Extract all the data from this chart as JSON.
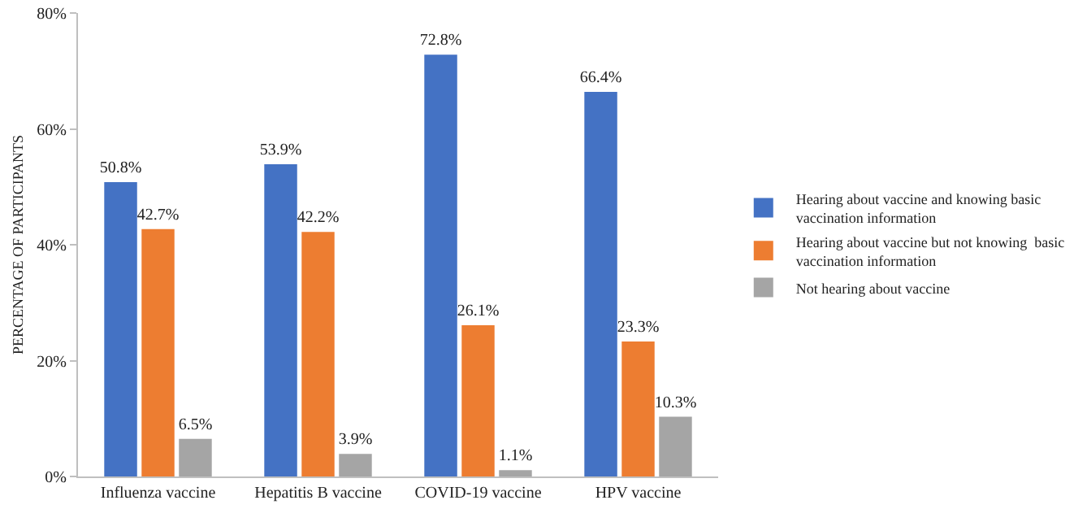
{
  "chart_data": {
    "type": "bar",
    "ylabel": "PERCENTAGE OF PARTICIPANTS",
    "categories": [
      "Influenza vaccine",
      "Hepatitis B vaccine",
      "COVID-19 vaccine",
      "HPV vaccine"
    ],
    "series": [
      {
        "name": "Hearing about vaccine and knowing basic vaccination information",
        "color": "#4472c4",
        "values": [
          50.8,
          53.9,
          72.8,
          66.4
        ],
        "value_labels": [
          "50.8%",
          "53.9%",
          "72.8%",
          "66.4%"
        ]
      },
      {
        "name": "Hearing about vaccine but not knowing  basic vaccination information",
        "color": "#ed7d31",
        "values": [
          42.7,
          42.2,
          26.1,
          23.3
        ],
        "value_labels": [
          "42.7%",
          "42.2%",
          "26.1%",
          "23.3%"
        ]
      },
      {
        "name": "Not hearing about vaccine",
        "color": "#a5a5a5",
        "values": [
          6.5,
          3.9,
          1.1,
          10.3
        ],
        "value_labels": [
          "6.5%",
          "3.9%",
          "1.1%",
          "10.3%"
        ]
      }
    ],
    "ylim": [
      0,
      80
    ],
    "yticks": [
      {
        "value": 0,
        "label": "0%"
      },
      {
        "value": 20,
        "label": "20%"
      },
      {
        "value": 40,
        "label": "40%"
      },
      {
        "value": 60,
        "label": "60%"
      },
      {
        "value": 80,
        "label": "80%"
      }
    ],
    "grid": false,
    "legend": "right"
  }
}
